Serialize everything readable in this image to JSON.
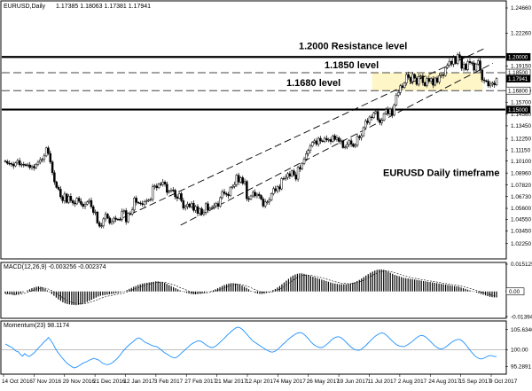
{
  "chart_data": [
    {
      "type": "candlestick",
      "symbol_header": "EURUSD,Daily",
      "ohlc_header": "1.17385 1.18063 1.17381 1.17941",
      "ylim": [
        1.0088,
        1.2525
      ],
      "y_ticks": [
        "1.24660",
        "1.22260",
        "1.19150",
        "1.16800",
        "1.15700",
        "1.14560",
        "1.13450",
        "1.12250",
        "1.11150",
        "1.10100",
        "1.08960",
        "1.07820",
        "1.06730",
        "1.05600",
        "1.04550",
        "1.03450",
        "1.02250"
      ],
      "price_boxes": [
        {
          "label": "1.20000",
          "value": 1.2,
          "color": "#000000",
          "text_color": "#ffffff"
        },
        {
          "label": "1.18500",
          "value": 1.185,
          "color": "#ffffff",
          "text_color": "#000000"
        },
        {
          "label": "1.17941",
          "value": 1.17941,
          "color": "#000000",
          "text_color": "#ffffff"
        },
        {
          "label": "1.16800",
          "value": 1.168,
          "color": "#ffffff",
          "text_color": "#000000"
        },
        {
          "label": "1.15000",
          "value": 1.15,
          "color": "#000000",
          "text_color": "#ffffff"
        }
      ],
      "horizontal_levels": [
        {
          "value": 1.2,
          "style": "solid"
        },
        {
          "value": 1.185,
          "style": "dashed"
        },
        {
          "value": 1.168,
          "style": "dashed"
        },
        {
          "value": 1.15,
          "style": "solid"
        }
      ],
      "annotations": [
        {
          "text": "1.2000 Resistance level",
          "value": 1.2
        },
        {
          "text": "1.1850 level",
          "value": 1.185
        },
        {
          "text": "1.1680 level",
          "value": 1.168
        },
        {
          "text": "EURUSD Daily timeframe",
          "value": 1.09
        }
      ],
      "candles_close": [
        1.1005,
        1.0989,
        1.0987,
        1.0979,
        1.0964,
        1.0992,
        1.1014,
        1.0974,
        1.0979,
        1.0977,
        1.0967,
        1.0973,
        1.0948,
        1.0959,
        1.0945,
        1.0977,
        1.0999,
        1.1021,
        1.1025,
        1.1059,
        1.1135,
        1.1083,
        1.1002,
        1.0899,
        1.0812,
        1.076,
        1.0742,
        1.067,
        1.0633,
        1.0696,
        1.0617,
        1.0676,
        1.0633,
        1.0611,
        1.0603,
        1.0657,
        1.0627,
        1.06,
        1.058,
        1.06,
        1.0621,
        1.0635,
        1.0576,
        1.0522,
        1.0525,
        1.0422,
        1.0391,
        1.0394,
        1.046,
        1.0505,
        1.0469,
        1.0421,
        1.0436,
        1.0467,
        1.0457,
        1.0456,
        1.0455,
        1.053,
        1.0539,
        1.0432,
        1.0512,
        1.0507,
        1.0545,
        1.0658,
        1.0617,
        1.0611,
        1.0605,
        1.0597,
        1.0625,
        1.0631,
        1.064,
        1.0645,
        1.0765,
        1.0774,
        1.0756,
        1.0793,
        1.0787,
        1.0811,
        1.079,
        1.0712,
        1.0725,
        1.0735,
        1.0732,
        1.067,
        1.0655,
        1.07,
        1.0633,
        1.0563,
        1.0579,
        1.0601,
        1.0574,
        1.0608,
        1.0542,
        1.0577,
        1.0512,
        1.0556,
        1.0505,
        1.0522,
        1.0604,
        1.0544,
        1.0561,
        1.057,
        1.0585,
        1.0606,
        1.0579,
        1.0662,
        1.0719,
        1.0701,
        1.0693,
        1.0681,
        1.0759,
        1.0769,
        1.0786,
        1.0875,
        1.081,
        1.0852,
        1.0798,
        1.0816,
        1.0652,
        1.0648,
        1.0678,
        1.0713,
        1.0679,
        1.0694,
        1.0682,
        1.0649,
        1.0582,
        1.0621,
        1.0621,
        1.064,
        1.0699,
        1.0747,
        1.0727,
        1.0766,
        1.0745,
        1.0844,
        1.0843,
        1.0855,
        1.089,
        1.0867,
        1.0917,
        1.088,
        1.0838,
        1.095,
        1.0935,
        1.0987,
        1.103,
        1.1079,
        1.1111,
        1.1152,
        1.1188,
        1.1202,
        1.1171,
        1.1226,
        1.1202,
        1.1198,
        1.1226,
        1.1212,
        1.1215,
        1.1196,
        1.125,
        1.1215,
        1.123,
        1.1197,
        1.1203,
        1.1138,
        1.1143,
        1.1168,
        1.1203,
        1.1171,
        1.115,
        1.1161,
        1.1244,
        1.1232,
        1.1251,
        1.1328,
        1.1391,
        1.1376,
        1.1429,
        1.1423,
        1.1467,
        1.1482,
        1.1403,
        1.1376,
        1.1398,
        1.1461,
        1.1501,
        1.1459,
        1.1504,
        1.1447,
        1.1545,
        1.1636,
        1.1662,
        1.1726,
        1.171,
        1.1752,
        1.1832,
        1.1805,
        1.1766,
        1.1834,
        1.18,
        1.174,
        1.1813,
        1.1819,
        1.1756,
        1.1727,
        1.1796,
        1.1768,
        1.1793,
        1.1732,
        1.18,
        1.176,
        1.1822,
        1.1832,
        1.1824,
        1.19,
        1.192,
        1.1958,
        1.1932,
        1.1994,
        1.1938,
        1.2022,
        1.1996,
        1.1892,
        1.1931,
        1.188,
        1.1957,
        1.1946,
        1.1942,
        1.1875,
        1.1933,
        1.1963,
        1.1876,
        1.1782,
        1.1774,
        1.177,
        1.1725,
        1.1741,
        1.1752,
        1.1735,
        1.1794
      ],
      "up_color": "#000000",
      "down_color": "#000000",
      "channel_lines": [
        {
          "x": [
            0.236,
            0.958
          ],
          "y": [
            1.046,
            1.208
          ],
          "style": "dashed"
        },
        {
          "x": [
            0.355,
            0.975
          ],
          "y": [
            1.04,
            1.194
          ],
          "style": "dashed"
        }
      ],
      "highlight_box": {
        "x": [
          0.735,
          0.955
        ],
        "y": [
          1.168,
          1.185
        ],
        "color": "#fff6c8"
      }
    },
    {
      "type": "histogram",
      "label": "MACD(12,26,9) -0.003256 -0.002374",
      "ylim": [
        -0.0144,
        0.0156
      ],
      "y_ticks": [
        "0.015125",
        "0.00",
        "-0.01394"
      ],
      "current_box": {
        "label": "0.00",
        "value": 0.0
      },
      "histogram": [
        -0.0012,
        -0.0014,
        -0.0016,
        -0.0018,
        -0.002,
        -0.0018,
        -0.0015,
        -0.001,
        -0.0005,
        0.0,
        0.0006,
        0.0012,
        0.0018,
        0.0022,
        0.0026,
        0.0028,
        0.0026,
        0.0022,
        0.0015,
        0.0006,
        -0.0004,
        -0.0014,
        -0.0024,
        -0.0034,
        -0.0044,
        -0.0052,
        -0.006,
        -0.0066,
        -0.007,
        -0.0072,
        -0.0074,
        -0.0075,
        -0.0076,
        -0.0074,
        -0.0072,
        -0.0068,
        -0.0064,
        -0.0058,
        -0.0052,
        -0.0046,
        -0.004,
        -0.0034,
        -0.0028,
        -0.0024,
        -0.0022,
        -0.002,
        -0.0018,
        -0.0016,
        -0.0014,
        -0.0012,
        -0.001,
        -0.0008,
        -0.0005,
        -0.0002,
        0.0002,
        0.0008,
        0.0014,
        0.002,
        0.0026,
        0.003,
        0.0036,
        0.004,
        0.0044,
        0.0046,
        0.0048,
        0.005,
        0.0052,
        0.0054,
        0.0056,
        0.0056,
        0.0054,
        0.0052,
        0.0048,
        0.0042,
        0.0036,
        0.003,
        0.0024,
        0.0018,
        0.0012,
        0.0006,
        0.0002,
        -0.0004,
        -0.0008,
        -0.0012,
        -0.0014,
        -0.0016,
        -0.0016,
        -0.0014,
        -0.0012,
        -0.001,
        -0.0007,
        -0.0004,
        -0.0001,
        0.0003,
        0.0007,
        0.0012,
        0.0018,
        0.0024,
        0.003,
        0.0036,
        0.004,
        0.0044,
        0.0046,
        0.0046,
        0.0044,
        0.0042,
        0.0038,
        0.0032,
        0.0026,
        0.002,
        0.0012,
        0.0004,
        -0.0002,
        -0.0008,
        -0.0012,
        -0.0014,
        -0.0014,
        -0.0012,
        -0.0008,
        -0.0003,
        0.0002,
        0.0008,
        0.0014,
        0.0022,
        0.003,
        0.004,
        0.005,
        0.006,
        0.007,
        0.008,
        0.0088,
        0.0094,
        0.0098,
        0.01,
        0.01,
        0.0098,
        0.0094,
        0.009,
        0.0086,
        0.0082,
        0.0078,
        0.0074,
        0.007,
        0.0066,
        0.0062,
        0.0058,
        0.0054,
        0.005,
        0.0046,
        0.0044,
        0.0042,
        0.004,
        0.004,
        0.004,
        0.004,
        0.0042,
        0.0044,
        0.0048,
        0.0052,
        0.0058,
        0.0064,
        0.0072,
        0.008,
        0.0088,
        0.0096,
        0.0104,
        0.011,
        0.0116,
        0.012,
        0.0122,
        0.0122,
        0.012,
        0.0116,
        0.011,
        0.0104,
        0.0098,
        0.0092,
        0.0088,
        0.0084,
        0.008,
        0.0076,
        0.0074,
        0.0072,
        0.007,
        0.0068,
        0.0066,
        0.0064,
        0.0062,
        0.006,
        0.0058,
        0.0056,
        0.0054,
        0.0052,
        0.005,
        0.0048,
        0.0046,
        0.0044,
        0.0042,
        0.004,
        0.0038,
        0.0036,
        0.0034,
        0.0032,
        0.003,
        0.0028,
        0.0026,
        0.0022,
        0.0018,
        0.0014,
        0.001,
        0.0006,
        0.0002,
        -0.0002,
        -0.0006,
        -0.001,
        -0.0014,
        -0.0018,
        -0.0022,
        -0.0026,
        -0.003,
        -0.0032,
        -0.0033,
        -0.0033
      ]
    },
    {
      "type": "line",
      "label": "Momentum(23) 98.1174",
      "ylim": [
        93.4,
        107.8
      ],
      "y_ticks": [
        "105.6346",
        "100.00",
        "95.2891"
      ],
      "line_color": "#1e90ff",
      "values": [
        101.6,
        101.3,
        100.9,
        100.7,
        100.1,
        99.6,
        99.4,
        98.7,
        98.2,
        98.9,
        98.4,
        98.1,
        98.5,
        98.9,
        99.5,
        100.2,
        100.9,
        101.5,
        102.2,
        102.7,
        103.4,
        102.7,
        101.8,
        100.6,
        99.6,
        98.8,
        98.0,
        97.3,
        96.6,
        96.0,
        95.6,
        95.2,
        94.9,
        95.1,
        95.4,
        95.8,
        96.2,
        96.5,
        96.7,
        97.1,
        97.3,
        97.6,
        97.4,
        97.2,
        96.8,
        96.3,
        96.0,
        95.8,
        95.9,
        96.1,
        96.5,
        97.0,
        97.6,
        98.3,
        99.1,
        99.8,
        100.5,
        101.1,
        101.6,
        102.1,
        102.6,
        103.1,
        103.3,
        103.0,
        102.5,
        102.0,
        101.8,
        101.5,
        101.2,
        101.0,
        100.9,
        100.6,
        100.1,
        99.6,
        99.1,
        98.8,
        98.4,
        98.0,
        97.8,
        97.7,
        98.1,
        98.6,
        99.2,
        99.7,
        100.3,
        100.8,
        101.4,
        101.8,
        102.1,
        102.4,
        102.5,
        102.3,
        101.9,
        101.4,
        101.0,
        100.7,
        100.6,
        100.8,
        101.2,
        101.7,
        102.3,
        102.8,
        103.4,
        104.1,
        104.6,
        105.2,
        105.7,
        106.1,
        106.3,
        106.1,
        105.7,
        105.1,
        104.4,
        103.7,
        103.0,
        102.4,
        102.0,
        101.6,
        101.2,
        100.8,
        100.4,
        100.0,
        99.7,
        99.4,
        99.3,
        99.5,
        99.9,
        100.4,
        101.0,
        101.6,
        102.1,
        102.7,
        103.2,
        103.7,
        104.1,
        104.5,
        104.7,
        104.8,
        104.6,
        104.1,
        103.5,
        102.8,
        102.1,
        101.5,
        101.1,
        100.8,
        100.6,
        100.6,
        100.9,
        101.4,
        101.9,
        102.5,
        103.0,
        103.4,
        103.6,
        103.6,
        103.3,
        102.8,
        102.2,
        101.6,
        101.0,
        100.5,
        100.1,
        99.9,
        99.8,
        100.0,
        100.5,
        101.0,
        101.6,
        102.2,
        102.8,
        103.4,
        103.9,
        104.3,
        104.6,
        104.7,
        104.5,
        104.0,
        103.4,
        102.8,
        102.2,
        101.7,
        101.3,
        101.0,
        100.9,
        100.9,
        101.1,
        101.5,
        101.9,
        102.4,
        102.9,
        103.4,
        103.8,
        104.0,
        103.9,
        103.6,
        103.1,
        102.5,
        101.9,
        101.3,
        100.8,
        100.4,
        100.2,
        100.3,
        100.6,
        101.0,
        101.5,
        102.0,
        102.4,
        102.7,
        102.9,
        102.8,
        102.5,
        101.9,
        101.2,
        100.4,
        99.6,
        98.9,
        98.3,
        97.8,
        97.5,
        97.4,
        97.6,
        97.9,
        98.2,
        98.4,
        98.3,
        98.1,
        98.1
      ]
    }
  ],
  "x_axis": {
    "labels": [
      "14 Oct 2016",
      "7 Nov 2016",
      "29 Nov 2016",
      "21 Dec 2016",
      "12 Jan 2017",
      "3 Feb 2017",
      "27 Feb 2017",
      "21 Mar 2017",
      "12 Apr 2017",
      "4 May 2017",
      "26 May 2017",
      "19 Jun 2017",
      "11 Jul 2017",
      "2 Aug 2017",
      "24 Aug 2017",
      "15 Sep 2017",
      "9 Oct 2017"
    ]
  }
}
